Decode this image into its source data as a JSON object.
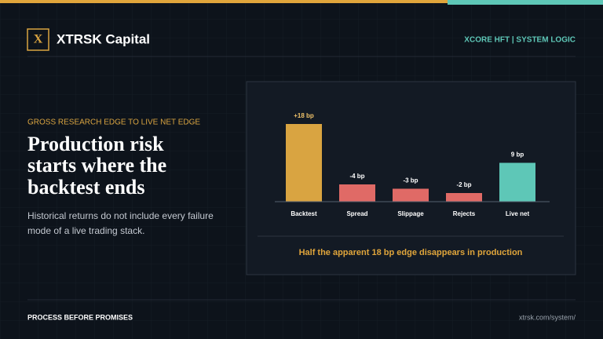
{
  "header": {
    "brand_mark": "X",
    "brand": "XTRSK Capital",
    "tag": "XCORE HFT | SYSTEM LOGIC"
  },
  "intro": {
    "kicker": "GROSS RESEARCH EDGE TO LIVE NET EDGE",
    "headline": [
      "Production risk",
      "starts where the",
      "backtest ends"
    ],
    "body": [
      "Historical returns do not include every failure",
      "mode of a live trading stack."
    ]
  },
  "chart_data": {
    "type": "bar",
    "categories": [
      "Backtest",
      "Spread",
      "Slippage",
      "Rejects",
      "Live net"
    ],
    "values": [
      18,
      -4,
      -3,
      -2,
      9
    ],
    "value_labels": [
      "+18 bp",
      "-4 bp",
      "-3 bp",
      "-2 bp",
      "9 bp"
    ],
    "colors": [
      "#d9a441",
      "#e06a66",
      "#e06a66",
      "#e06a66",
      "#5ec7b7"
    ],
    "caption": "Half the apparent 18 bp edge disappears in production"
  },
  "footer": {
    "left": "PROCESS BEFORE PROMISES",
    "right": "xtrsk.com/system/"
  }
}
